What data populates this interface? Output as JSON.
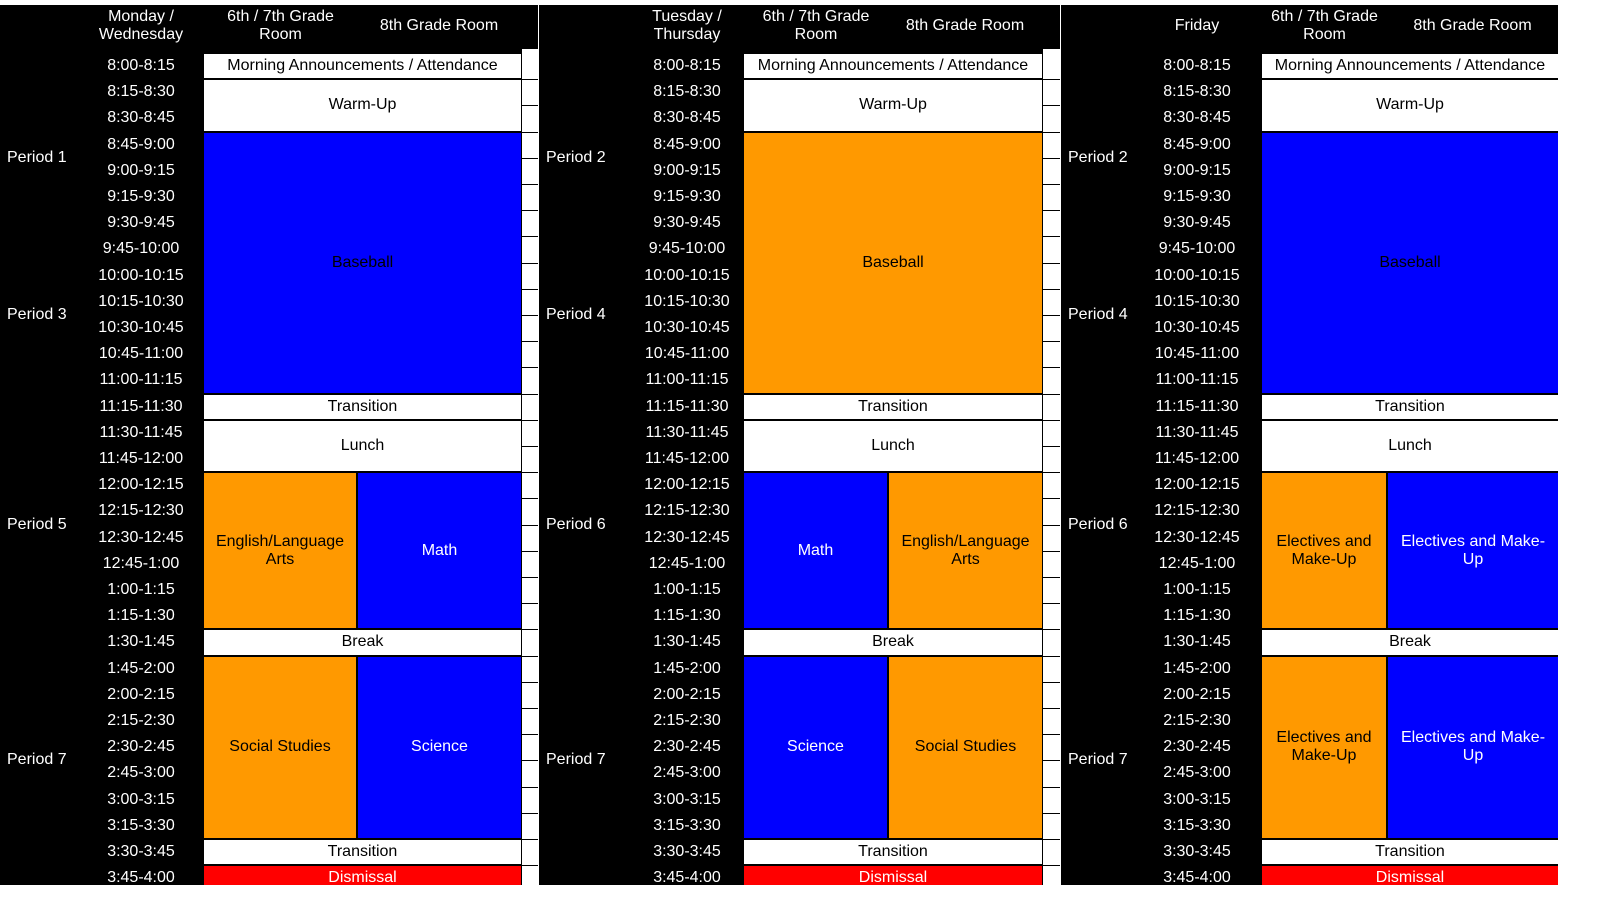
{
  "times": [
    "8:00-8:15",
    "8:15-8:30",
    "8:30-8:45",
    "8:45-9:00",
    "9:00-9:15",
    "9:15-9:30",
    "9:30-9:45",
    "9:45-10:00",
    "10:00-10:15",
    "10:15-10:30",
    "10:30-10:45",
    "10:45-11:00",
    "11:00-11:15",
    "11:15-11:30",
    "11:30-11:45",
    "11:45-12:00",
    "12:00-12:15",
    "12:15-12:30",
    "12:30-12:45",
    "12:45-1:00",
    "1:00-1:15",
    "1:15-1:30",
    "1:30-1:45",
    "1:45-2:00",
    "2:00-2:15",
    "2:15-2:30",
    "2:30-2:45",
    "2:45-3:00",
    "3:00-3:15",
    "3:15-3:30",
    "3:30-3:45",
    "3:45-4:00"
  ],
  "colors": {
    "blue": "#0000ff",
    "orange": "#ff9900",
    "red": "#ff0000",
    "white": "#ffffff",
    "black": "#000000"
  },
  "panels": [
    {
      "day_label": "Monday /\nWednesday",
      "room1_label": "6th / 7th Grade\nRoom",
      "room2_label": "8th Grade Room",
      "periods": [
        {
          "label": "Period 1",
          "row": 4
        },
        {
          "label": "Period 3",
          "row": 10
        },
        {
          "label": "Period 5",
          "row": 18
        },
        {
          "label": "Period 7",
          "row": 27
        }
      ],
      "blocks": [
        {
          "text": "Morning Announcements / Attendance",
          "start": 0,
          "end": 0,
          "span": "both",
          "color": "white"
        },
        {
          "text": "Warm-Up",
          "start": 1,
          "end": 2,
          "span": "both",
          "color": "white"
        },
        {
          "text": "Baseball",
          "start": 3,
          "end": 12,
          "span": "both",
          "color": "blue"
        },
        {
          "text": "Transition",
          "start": 13,
          "end": 13,
          "span": "both",
          "color": "white"
        },
        {
          "text": "Lunch",
          "start": 14,
          "end": 15,
          "span": "both",
          "color": "white"
        },
        {
          "text": "English/Language\nArts",
          "start": 16,
          "end": 21,
          "span": "left",
          "color": "orange"
        },
        {
          "text": "Math",
          "start": 16,
          "end": 21,
          "span": "right",
          "color": "blue"
        },
        {
          "text": "Break",
          "start": 22,
          "end": 22,
          "span": "both",
          "color": "white"
        },
        {
          "text": "Social Studies",
          "start": 23,
          "end": 29,
          "span": "left",
          "color": "orange"
        },
        {
          "text": "Science",
          "start": 23,
          "end": 29,
          "span": "right",
          "color": "blue"
        },
        {
          "text": "Transition",
          "start": 30,
          "end": 30,
          "span": "both",
          "color": "white"
        },
        {
          "text": "Dismissal",
          "start": 31,
          "end": 31,
          "span": "both",
          "color": "red"
        }
      ]
    },
    {
      "day_label": "Tuesday /\nThursday",
      "room1_label": "6th / 7th Grade\nRoom",
      "room2_label": "8th Grade Room",
      "periods": [
        {
          "label": "Period 2",
          "row": 4
        },
        {
          "label": "Period 4",
          "row": 10
        },
        {
          "label": "Period 6",
          "row": 18
        },
        {
          "label": "Period 7",
          "row": 27
        }
      ],
      "blocks": [
        {
          "text": "Morning Announcements / Attendance",
          "start": 0,
          "end": 0,
          "span": "both",
          "color": "white"
        },
        {
          "text": "Warm-Up",
          "start": 1,
          "end": 2,
          "span": "both",
          "color": "white"
        },
        {
          "text": "Baseball",
          "start": 3,
          "end": 12,
          "span": "both",
          "color": "orange"
        },
        {
          "text": "Transition",
          "start": 13,
          "end": 13,
          "span": "both",
          "color": "white"
        },
        {
          "text": "Lunch",
          "start": 14,
          "end": 15,
          "span": "both",
          "color": "white"
        },
        {
          "text": "Math",
          "start": 16,
          "end": 21,
          "span": "left",
          "color": "blue"
        },
        {
          "text": "English/Language\nArts",
          "start": 16,
          "end": 21,
          "span": "right",
          "color": "orange"
        },
        {
          "text": "Break",
          "start": 22,
          "end": 22,
          "span": "both",
          "color": "white"
        },
        {
          "text": "Science",
          "start": 23,
          "end": 29,
          "span": "left",
          "color": "blue"
        },
        {
          "text": "Social Studies",
          "start": 23,
          "end": 29,
          "span": "right",
          "color": "orange"
        },
        {
          "text": "Transition",
          "start": 30,
          "end": 30,
          "span": "both",
          "color": "white"
        },
        {
          "text": "Dismissal",
          "start": 31,
          "end": 31,
          "span": "both",
          "color": "red"
        }
      ]
    },
    {
      "day_label": "Friday",
      "room1_label": "6th / 7th Grade\nRoom",
      "room2_label": "8th Grade Room",
      "periods": [
        {
          "label": "Period 2",
          "row": 4
        },
        {
          "label": "Period 4",
          "row": 10
        },
        {
          "label": "Period 6",
          "row": 18
        },
        {
          "label": "Period 7",
          "row": 27
        }
      ],
      "blocks": [
        {
          "text": "Morning Announcements / Attendance",
          "start": 0,
          "end": 0,
          "span": "both",
          "color": "white"
        },
        {
          "text": "Warm-Up",
          "start": 1,
          "end": 2,
          "span": "both",
          "color": "white"
        },
        {
          "text": "Baseball",
          "start": 3,
          "end": 12,
          "span": "both",
          "color": "blue"
        },
        {
          "text": "Transition",
          "start": 13,
          "end": 13,
          "span": "both",
          "color": "white"
        },
        {
          "text": "Lunch",
          "start": 14,
          "end": 15,
          "span": "both",
          "color": "white"
        },
        {
          "text": "Electives and\nMake-Up",
          "start": 16,
          "end": 21,
          "span": "left",
          "color": "orange"
        },
        {
          "text": "Electives and Make-\nUp",
          "start": 16,
          "end": 21,
          "span": "right",
          "color": "blue"
        },
        {
          "text": "Break",
          "start": 22,
          "end": 22,
          "span": "both",
          "color": "white"
        },
        {
          "text": "Electives and\nMake-Up",
          "start": 23,
          "end": 29,
          "span": "left",
          "color": "orange"
        },
        {
          "text": "Electives and Make-\nUp",
          "start": 23,
          "end": 29,
          "span": "right",
          "color": "blue"
        },
        {
          "text": "Transition",
          "start": 30,
          "end": 30,
          "span": "both",
          "color": "white"
        },
        {
          "text": "Dismissal",
          "start": 31,
          "end": 31,
          "span": "both",
          "color": "red"
        }
      ]
    }
  ]
}
